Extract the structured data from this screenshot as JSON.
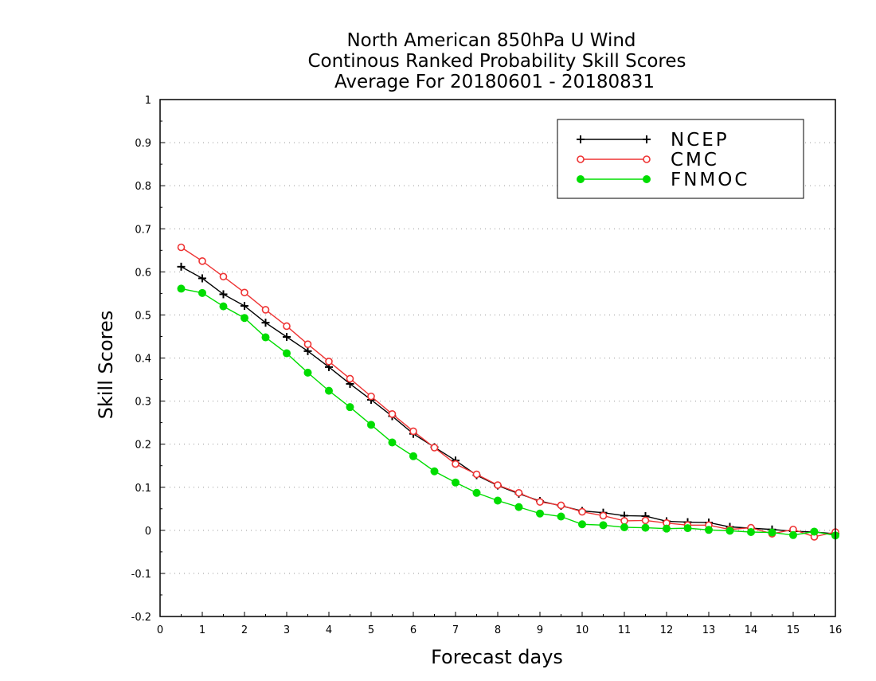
{
  "chart_data": {
    "type": "line",
    "title_lines": [
      "North American 850hPa U Wind",
      "Continous Ranked Probability Skill Scores",
      "Average For 20180601 - 20180831"
    ],
    "xlabel": "Forecast days",
    "ylabel": "Skill Scores",
    "xlim": [
      0,
      16
    ],
    "ylim": [
      -0.2,
      1
    ],
    "xticks": [
      "0",
      "1",
      "2",
      "3",
      "4",
      "5",
      "6",
      "7",
      "8",
      "9",
      "10",
      "11",
      "12",
      "13",
      "14",
      "15",
      "16"
    ],
    "yticks": [
      "-0.2",
      "-0.1",
      "0",
      "0.1",
      "0.2",
      "0.3",
      "0.4",
      "0.5",
      "0.6",
      "0.7",
      "0.8",
      "0.9",
      "1"
    ],
    "grid": "horizontal dotted",
    "legend_position": "top-right",
    "x": [
      0.5,
      1,
      1.5,
      2,
      2.5,
      3,
      3.5,
      4,
      4.5,
      5,
      5.5,
      6,
      6.5,
      7,
      7.5,
      8,
      8.5,
      9,
      9.5,
      10,
      10.5,
      11,
      11.5,
      12,
      12.5,
      13,
      13.5,
      14,
      14.5,
      15,
      15.5,
      16
    ],
    "series": [
      {
        "name": "NCEP",
        "color": "#000000",
        "marker": "plus",
        "values": [
          0.612,
          0.585,
          0.548,
          0.521,
          0.482,
          0.449,
          0.416,
          0.379,
          0.34,
          0.303,
          0.265,
          0.224,
          0.193,
          0.162,
          0.128,
          0.104,
          0.085,
          0.068,
          0.057,
          0.045,
          0.041,
          0.034,
          0.033,
          0.021,
          0.019,
          0.018,
          0.008,
          0.005,
          0.002,
          -0.002,
          -0.004,
          -0.008
        ]
      },
      {
        "name": "CMC",
        "color": "#ee3333",
        "marker": "open-circle",
        "values": [
          0.657,
          0.625,
          0.589,
          0.552,
          0.512,
          0.474,
          0.432,
          0.392,
          0.352,
          0.311,
          0.27,
          0.23,
          0.192,
          0.154,
          0.13,
          0.105,
          0.087,
          0.066,
          0.058,
          0.043,
          0.034,
          0.022,
          0.023,
          0.017,
          0.012,
          0.012,
          0.002,
          0.006,
          -0.008,
          0.002,
          -0.015,
          -0.004
        ]
      },
      {
        "name": "FNMOC",
        "color": "#00dd00",
        "marker": "filled-circle",
        "values": [
          0.561,
          0.551,
          0.52,
          0.493,
          0.448,
          0.411,
          0.366,
          0.324,
          0.286,
          0.245,
          0.204,
          0.172,
          0.137,
          0.111,
          0.087,
          0.069,
          0.054,
          0.039,
          0.032,
          0.014,
          0.012,
          0.007,
          0.006,
          0.004,
          0.005,
          0.001,
          -0.001,
          -0.004,
          -0.005,
          -0.011,
          -0.003,
          -0.012
        ]
      }
    ]
  }
}
